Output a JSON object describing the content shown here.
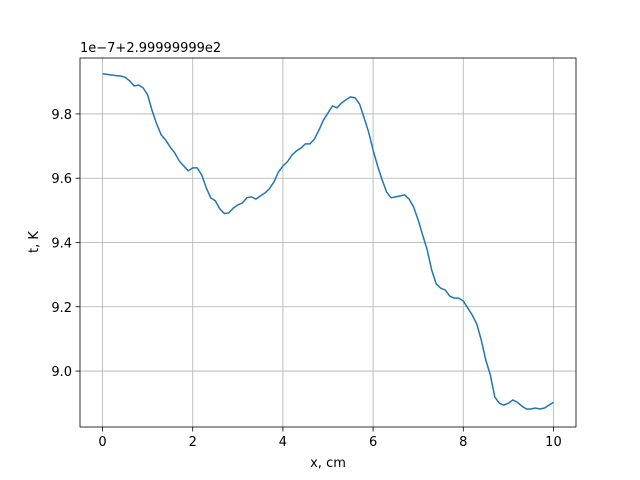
{
  "chart_data": {
    "type": "line",
    "offset_text": "1e−7+2.99999999e2",
    "xlabel": "x, cm",
    "ylabel": "t, K",
    "x": [
      0,
      0.1,
      0.2,
      0.3,
      0.4,
      0.5,
      0.6,
      0.7,
      0.8,
      0.9,
      1.0,
      1.1,
      1.2,
      1.3,
      1.4,
      1.5,
      1.6,
      1.7,
      1.8,
      1.9,
      2.0,
      2.1,
      2.2,
      2.3,
      2.4,
      2.5,
      2.6,
      2.7,
      2.8,
      2.9,
      3.0,
      3.1,
      3.2,
      3.3,
      3.4,
      3.5,
      3.6,
      3.7,
      3.8,
      3.9,
      4.0,
      4.1,
      4.2,
      4.3,
      4.4,
      4.5,
      4.6,
      4.7,
      4.8,
      4.9,
      5.0,
      5.1,
      5.2,
      5.3,
      5.4,
      5.5,
      5.6,
      5.7,
      5.8,
      5.9,
      6.0,
      6.1,
      6.2,
      6.3,
      6.4,
      6.5,
      6.6,
      6.7,
      6.8,
      6.9,
      7.0,
      7.1,
      7.2,
      7.3,
      7.4,
      7.5,
      7.6,
      7.7,
      7.8,
      7.9,
      8.0,
      8.1,
      8.2,
      8.3,
      8.4,
      8.5,
      8.6,
      8.7,
      8.8,
      8.9,
      9.0,
      9.1,
      9.2,
      9.3,
      9.4,
      9.5,
      9.6,
      9.7,
      9.8,
      9.9,
      10.0
    ],
    "series": [
      {
        "color": "#1f77b4",
        "values": [
          9.925,
          9.923,
          9.921,
          9.919,
          9.918,
          9.914,
          9.903,
          9.887,
          9.89,
          9.881,
          9.859,
          9.81,
          9.769,
          9.735,
          9.719,
          9.697,
          9.679,
          9.654,
          9.638,
          9.623,
          9.632,
          9.632,
          9.61,
          9.57,
          9.539,
          9.53,
          9.505,
          9.49,
          9.492,
          9.507,
          9.517,
          9.523,
          9.539,
          9.542,
          9.535,
          9.545,
          9.554,
          9.567,
          9.588,
          9.619,
          9.638,
          9.651,
          9.672,
          9.685,
          9.694,
          9.707,
          9.707,
          9.722,
          9.75,
          9.781,
          9.803,
          9.825,
          9.819,
          9.834,
          9.844,
          9.853,
          9.85,
          9.831,
          9.788,
          9.744,
          9.688,
          9.638,
          9.595,
          9.557,
          9.539,
          9.542,
          9.545,
          9.548,
          9.535,
          9.51,
          9.47,
          9.423,
          9.377,
          9.314,
          9.271,
          9.258,
          9.252,
          9.233,
          9.227,
          9.227,
          9.218,
          9.196,
          9.174,
          9.146,
          9.096,
          9.034,
          8.988,
          8.919,
          8.9,
          8.894,
          8.9,
          8.91,
          8.903,
          8.891,
          8.882,
          8.882,
          8.885,
          8.882,
          8.885,
          8.894,
          8.903
        ]
      }
    ],
    "xlim": [
      -0.5,
      10.5
    ],
    "xticks": [
      0,
      2,
      4,
      6,
      8,
      10
    ],
    "ylim": [
      8.826,
      9.974
    ],
    "yticks": [
      {
        "value": 9,
        "label": "9.0"
      },
      9.2,
      9.4,
      9.6,
      9.8
    ],
    "grid": true
  }
}
